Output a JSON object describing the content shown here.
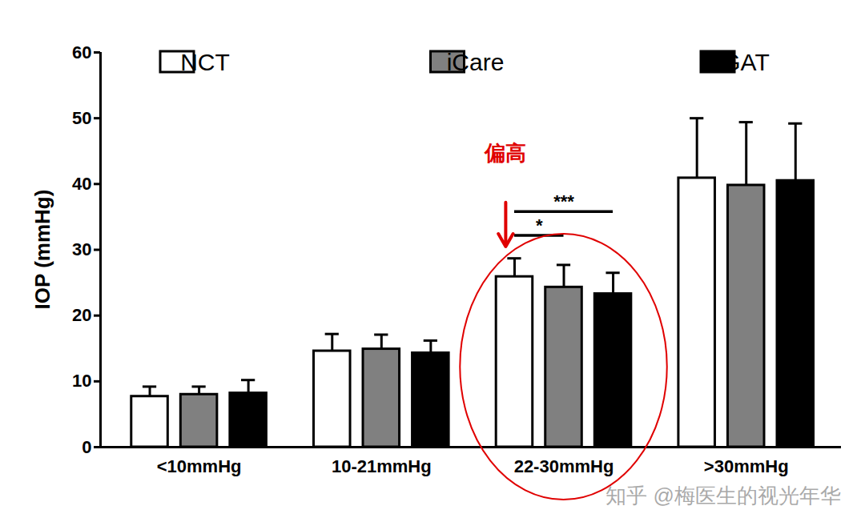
{
  "chart_data": {
    "type": "bar",
    "y_label": "IOP (mmHg)",
    "categories": [
      "<10mmHg",
      "10-21mmHg",
      "22-30mmHg",
      ">30mmHg"
    ],
    "series": [
      {
        "name": "NCT",
        "color": "#ffffff",
        "values": [
          7.7,
          14.6,
          25.9,
          40.9
        ],
        "errors": [
          1.5,
          2.6,
          2.8,
          9.1
        ]
      },
      {
        "name": "iCare",
        "color": "#808080",
        "values": [
          8.0,
          14.9,
          24.3,
          39.8
        ],
        "errors": [
          1.2,
          2.2,
          3.4,
          9.6
        ]
      },
      {
        "name": "GAT",
        "color": "#000000",
        "values": [
          8.2,
          14.3,
          23.3,
          40.5
        ],
        "errors": [
          2.0,
          1.9,
          3.2,
          8.7
        ]
      }
    ],
    "ylim": [
      0,
      60
    ],
    "yticks": [
      0,
      10,
      20,
      30,
      40,
      50,
      60
    ],
    "legend": "top",
    "annotations": [
      {
        "text": "偏高",
        "category": "22-30mmHg",
        "series": "NCT",
        "color": "#e00000"
      },
      {
        "text": "*",
        "category": "22-30mmHg",
        "from": "NCT",
        "to": "iCare"
      },
      {
        "text": "***",
        "category": "22-30mmHg",
        "from": "NCT",
        "to": "GAT"
      }
    ],
    "watermark": "知乎 @梅医生的视光年华"
  }
}
